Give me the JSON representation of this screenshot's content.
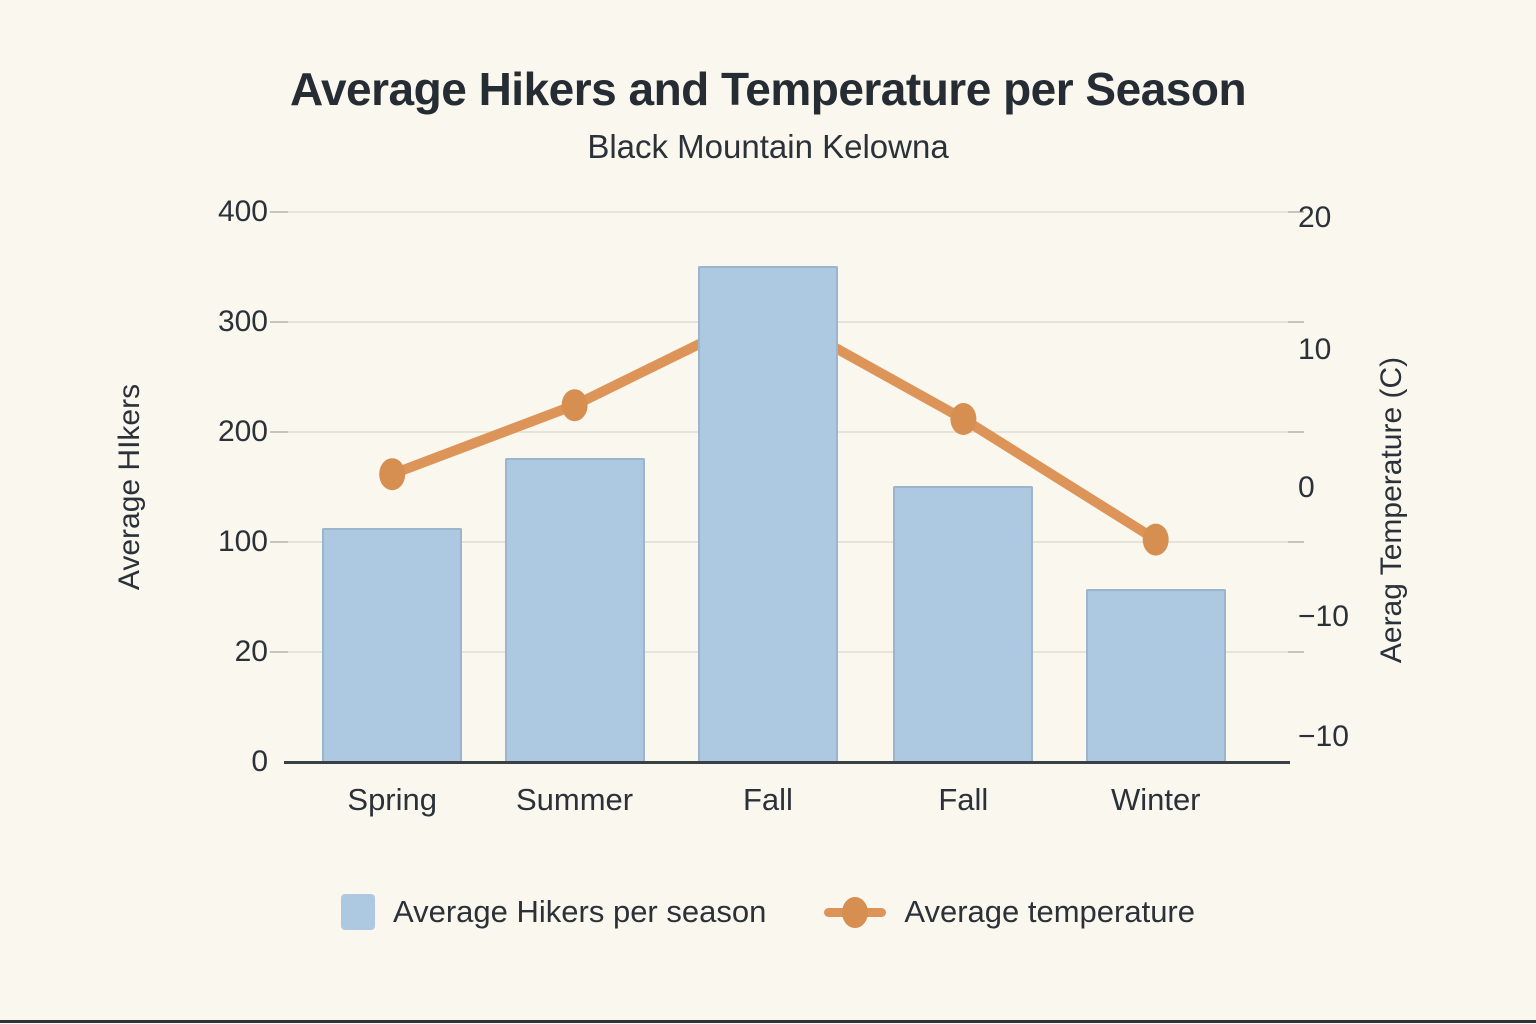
{
  "chart_data": {
    "type": "bar",
    "title": "Average Hikers and Temperature per Season",
    "subtitle": "Black Mountain Kelowna",
    "categories": [
      "Spring",
      "Summer",
      "Fall",
      "Fall",
      "Winter"
    ],
    "series": [
      {
        "name": "Average Hikers per season",
        "type": "bar",
        "axis": "left",
        "color": "#adc9e1",
        "values": [
          112,
          175,
          350,
          150,
          65
        ]
      },
      {
        "name": "Average temperature",
        "type": "line",
        "axis": "right",
        "color": "#dc9458",
        "values": [
          1,
          6,
          13,
          5,
          -4
        ]
      }
    ],
    "left_axis": {
      "label": "Average HIkers",
      "ticks_top_to_bottom": [
        "400",
        "300",
        "200",
        "100",
        "20",
        "0"
      ]
    },
    "right_axis": {
      "label": "Aerag Temperature (C)",
      "ticks_top_to_bottom": [
        "20",
        "10",
        "0",
        "−10",
        "−10"
      ]
    },
    "grid": true,
    "legend_position": "bottom"
  }
}
